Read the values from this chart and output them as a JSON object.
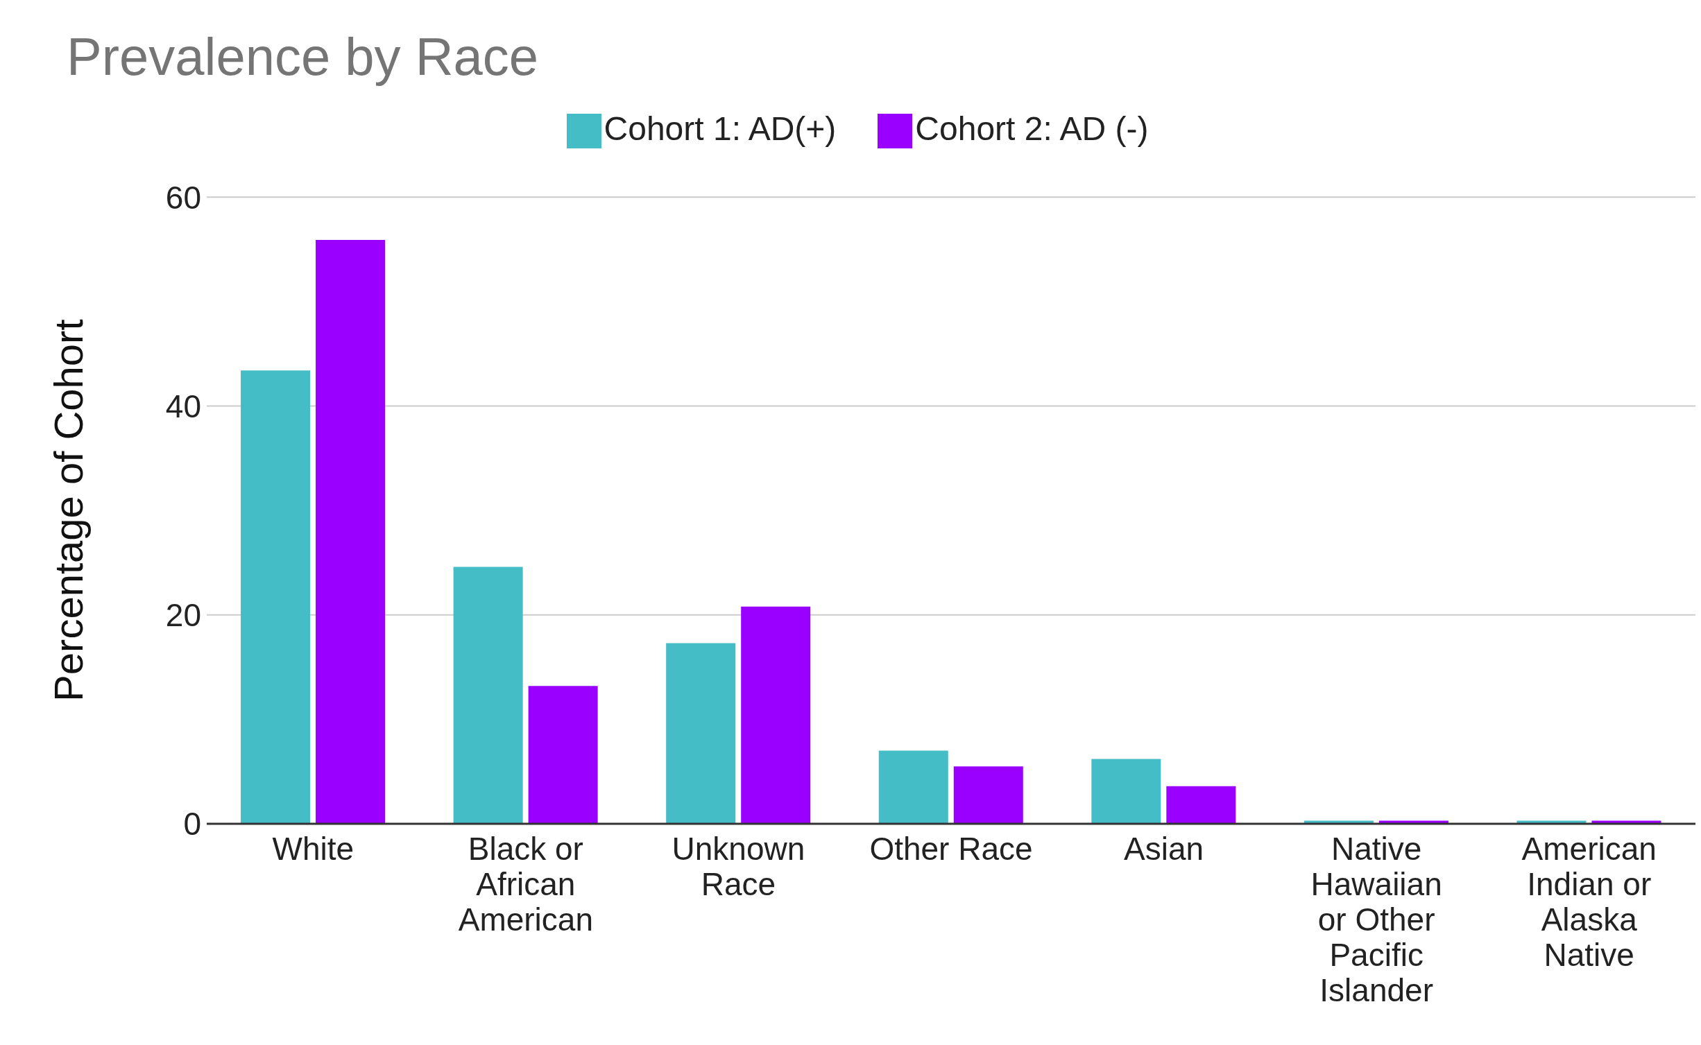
{
  "chart_data": {
    "type": "bar",
    "title": "Prevalence by Race",
    "ylabel": "Percentage of Cohort",
    "categories": [
      "White",
      "Black or African American",
      "Unknown Race",
      "Other Race",
      "Asian",
      "Native Hawaiian or Other Pacific Islander",
      "American Indian or Alaska Native"
    ],
    "series": [
      {
        "name": "Cohort 1: AD(+)",
        "color": "#45bdc6",
        "values": [
          43.4,
          24.6,
          17.3,
          7.0,
          6.2,
          0.3,
          0.3
        ]
      },
      {
        "name": "Cohort 2: AD (-)",
        "color": "#9900ff",
        "values": [
          55.9,
          13.2,
          20.8,
          5.5,
          3.6,
          0.3,
          0.3
        ]
      }
    ],
    "ylim": [
      0,
      60
    ],
    "yticks": [
      0,
      20,
      40,
      60
    ],
    "grid": "y",
    "legend": "top"
  }
}
